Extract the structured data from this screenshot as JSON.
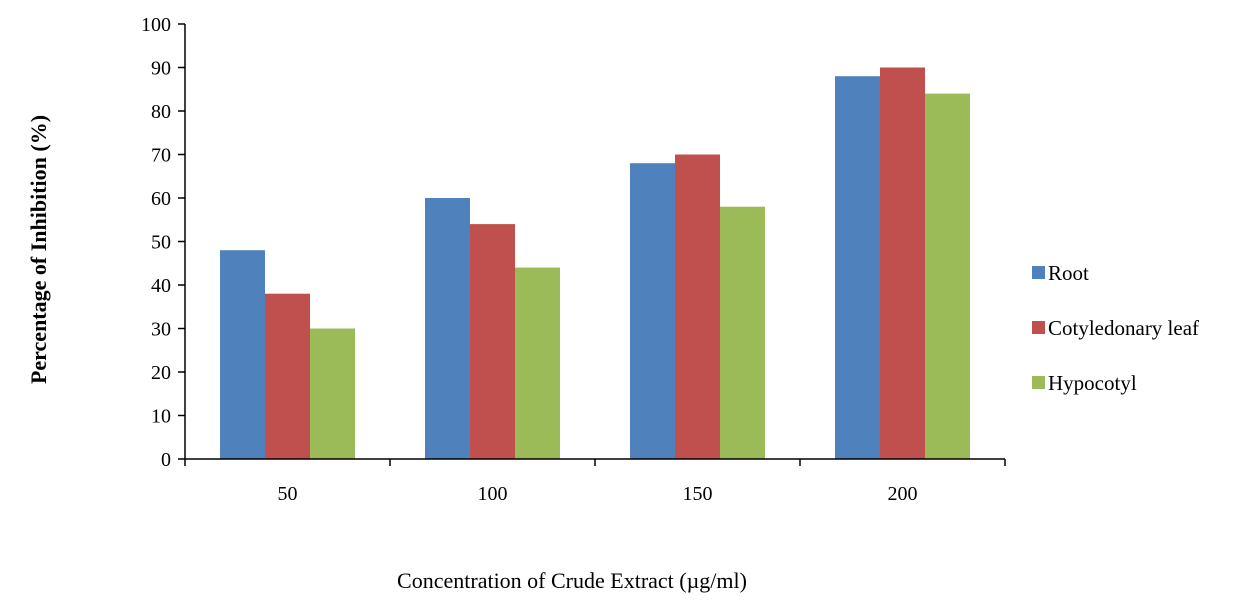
{
  "chart_data": {
    "type": "bar",
    "title": "",
    "xlabel": "Concentration of Crude Extract (µg/ml)",
    "ylabel": "Percentage of Inhibition (%)",
    "categories": [
      "50",
      "100",
      "150",
      "200"
    ],
    "ylim": [
      0,
      100
    ],
    "yticks": [
      0,
      10,
      20,
      30,
      40,
      50,
      60,
      70,
      80,
      90,
      100
    ],
    "grid": false,
    "legend_position": "right",
    "series": [
      {
        "name": "Root",
        "color": "#4F81BD",
        "values": [
          48,
          60,
          68,
          88
        ]
      },
      {
        "name": "Cotyledonary leaf",
        "color": "#C0504D",
        "values": [
          38,
          54,
          70,
          90
        ]
      },
      {
        "name": "Hypocotyl",
        "color": "#9BBB59",
        "values": [
          30,
          44,
          58,
          84
        ]
      }
    ]
  }
}
